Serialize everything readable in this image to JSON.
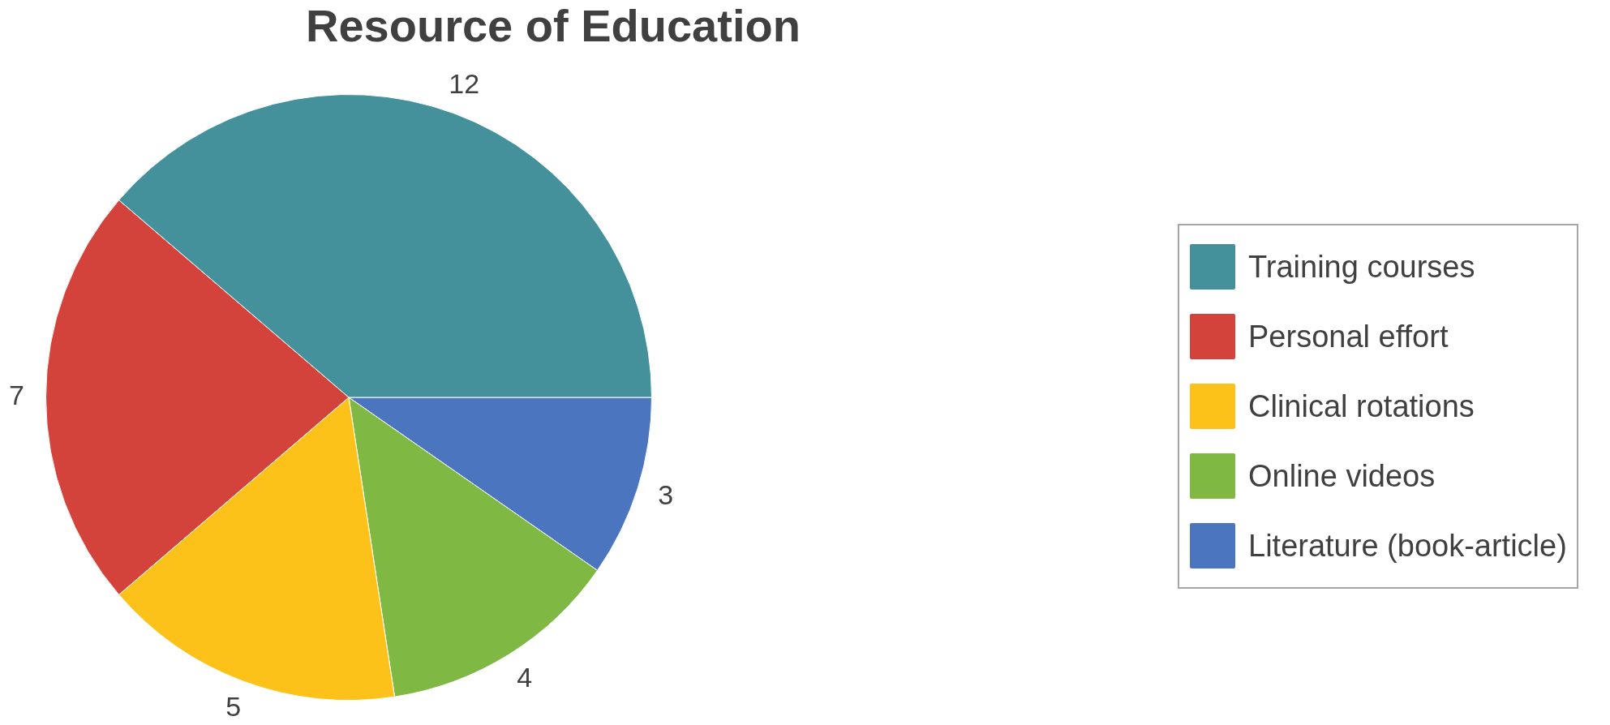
{
  "chart_data": {
    "type": "pie",
    "title": "Resource of Education",
    "categories": [
      "Training courses",
      "Personal effort",
      "Clinical rotations",
      "Online videos",
      "Literature (book-article)"
    ],
    "values": [
      12,
      7,
      5,
      4,
      3
    ],
    "colors": [
      "#45919b",
      "#d3433b",
      "#fdc21a",
      "#7fb843",
      "#4b76bf"
    ],
    "data_labels": true,
    "legend": "right"
  }
}
